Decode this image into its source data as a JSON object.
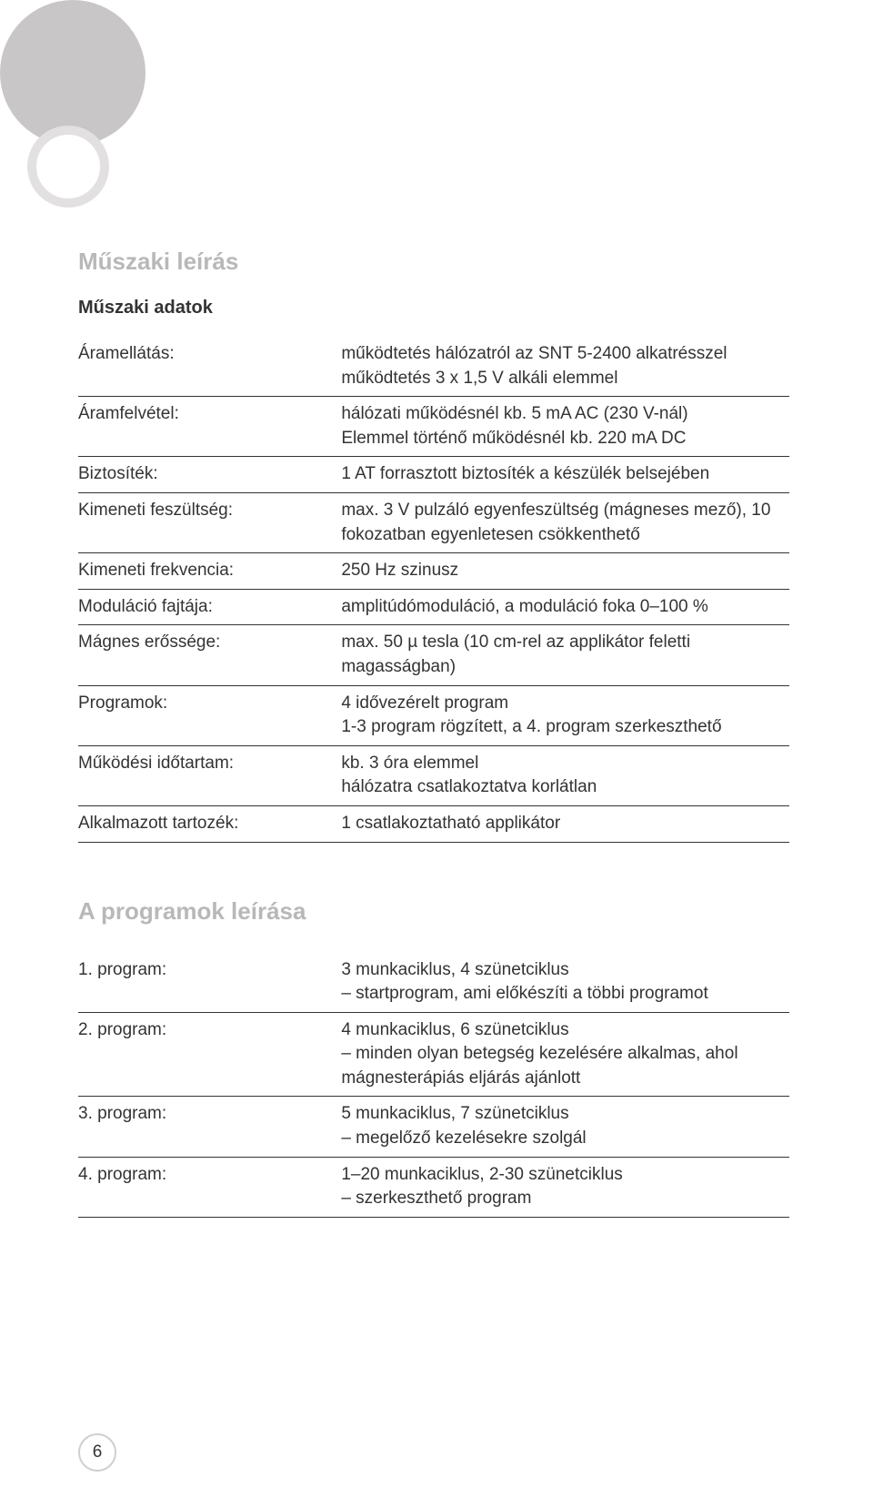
{
  "logo": {
    "big_circle_color": "#c8c6c6",
    "small_ring_color": "#e2e0e0",
    "background": "#ffffff"
  },
  "section1": {
    "title": "Műszaki leírás",
    "subtitle": "Műszaki adatok",
    "rows": [
      {
        "label": "Áramellátás:",
        "value": "működtetés hálózatról az SNT 5-2400 alkatrésszel\nműködtetés 3 x 1,5 V alkáli elemmel"
      },
      {
        "label": "Áramfelvétel:",
        "value": "hálózati működésnél kb. 5 mA AC (230 V-nál)\nElemmel történő működésnél kb. 220 mA DC"
      },
      {
        "label": "Biztosíték:",
        "value": "1 AT forrasztott biztosíték a készülék belsejében"
      },
      {
        "label": "Kimeneti feszültség:",
        "value": "max. 3 V pulzáló egyenfeszültség (mágneses mező), 10 fokozatban egyenletesen csökkenthető"
      },
      {
        "label": "Kimeneti frekvencia:",
        "value": "250 Hz szinusz"
      },
      {
        "label": "Moduláció fajtája:",
        "value": "amplitúdómoduláció, a moduláció foka 0–100 %"
      },
      {
        "label": "Mágnes erőssége:",
        "value": "max. 50 µ tesla (10 cm-rel az applikátor feletti magasságban)"
      },
      {
        "label": "Programok:",
        "value": "4 idővezérelt program\n1-3 program rögzített, a 4. program szerkeszthető"
      },
      {
        "label": "Működési időtartam:",
        "value": "kb. 3 óra elemmel\nhálózatra csatlakoztatva korlátlan"
      },
      {
        "label": "Alkalmazott tartozék:",
        "value": "1 csatlakoztatható applikátor"
      }
    ]
  },
  "section2": {
    "title": "A programok leírása",
    "rows": [
      {
        "label": "1. program:",
        "value": "3 munkaciklus, 4 szünetciklus\n– startprogram, ami előkészíti a többi programot"
      },
      {
        "label": "2. program:",
        "value": "4 munkaciklus, 6 szünetciklus\n– minden olyan betegség kezelésére alkalmas, ahol mágnesterápiás eljárás ajánlott"
      },
      {
        "label": "3. program:",
        "value": "5 munkaciklus, 7 szünetciklus\n– megelőző kezelésekre szolgál"
      },
      {
        "label": "4. program:",
        "value": "1–20 munkaciklus, 2-30 szünetciklus\n– szerkeszthető program"
      }
    ]
  },
  "page_number": "6",
  "colors": {
    "section_title": "#b9b8b8",
    "text": "#333333",
    "rule": "#333333",
    "page_ring": "#cfcfcf"
  },
  "typography": {
    "section_title_size": 26,
    "subtitle_size": 20,
    "body_size": 19
  }
}
